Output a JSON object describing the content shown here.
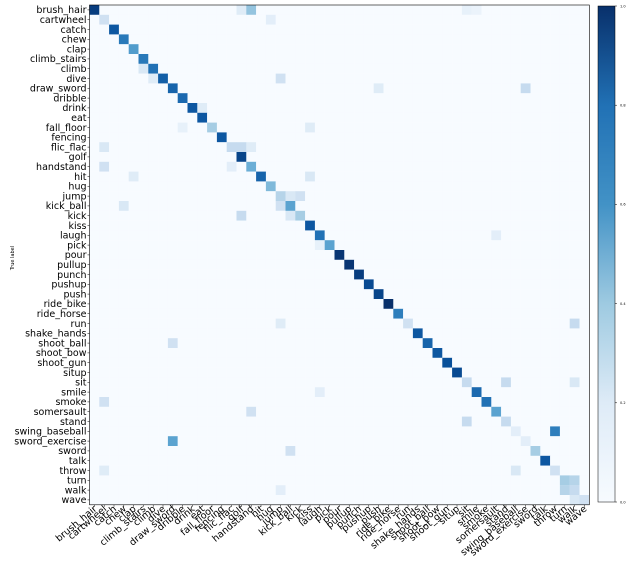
{
  "chart_data": {
    "type": "heatmap",
    "title": "",
    "ylabel": "True label",
    "xlabel": "",
    "labels": [
      "brush_hair",
      "cartwheel",
      "catch",
      "chew",
      "clap",
      "climb_stairs",
      "climb",
      "dive",
      "draw_sword",
      "dribble",
      "drink",
      "eat",
      "fall_floor",
      "fencing",
      "flic_flac",
      "golf",
      "handstand",
      "hit",
      "hug",
      "jump",
      "kick_ball",
      "kick",
      "kiss",
      "laugh",
      "pick",
      "pour",
      "pullup",
      "punch",
      "pushup",
      "push",
      "ride_bike",
      "ride_horse",
      "run",
      "shake_hands",
      "shoot_ball",
      "shoot_bow",
      "shoot_gun",
      "situp",
      "sit",
      "smile",
      "smoke",
      "somersault",
      "stand",
      "swing_baseball",
      "sword_exercise",
      "sword",
      "talk",
      "throw",
      "turn",
      "walk",
      "wave"
    ],
    "colorbar": {
      "min": 0.0,
      "max": 1.0,
      "ticks": [
        "0.0",
        "0.2",
        "0.4",
        "0.6",
        "0.8",
        "1.0"
      ]
    },
    "diagonal": [
      0.95,
      0.2,
      0.85,
      0.72,
      0.58,
      0.72,
      0.75,
      0.82,
      0.8,
      0.78,
      0.85,
      0.85,
      0.35,
      0.85,
      0.25,
      0.92,
      0.5,
      0.8,
      0.45,
      0.3,
      0.55,
      0.35,
      0.85,
      0.75,
      0.55,
      0.98,
      0.98,
      0.95,
      0.9,
      0.92,
      1.0,
      0.7,
      0.2,
      0.85,
      0.8,
      0.85,
      0.88,
      0.9,
      0.25,
      0.78,
      0.75,
      0.55,
      0.25,
      0.1,
      0.1,
      0.35,
      0.85,
      0.2,
      0.35,
      0.25,
      0.2
    ],
    "off_diagonal": [
      {
        "true": "brush_hair",
        "pred": "golf",
        "value": 0.12
      },
      {
        "true": "brush_hair",
        "pred": "handstand",
        "value": 0.4
      },
      {
        "true": "brush_hair",
        "pred": "sit",
        "value": 0.08
      },
      {
        "true": "brush_hair",
        "pred": "smile",
        "value": 0.06
      },
      {
        "true": "cartwheel",
        "pred": "hug",
        "value": 0.1
      },
      {
        "true": "climb",
        "pred": "climb_stairs",
        "value": 0.15
      },
      {
        "true": "dive",
        "pred": "climb",
        "value": 0.12
      },
      {
        "true": "dive",
        "pred": "jump",
        "value": 0.2
      },
      {
        "true": "draw_sword",
        "pred": "sword_exercise",
        "value": 0.25
      },
      {
        "true": "draw_sword",
        "pred": "push",
        "value": 0.12
      },
      {
        "true": "drink",
        "pred": "eat",
        "value": 0.12
      },
      {
        "true": "fall_floor",
        "pred": "dribble",
        "value": 0.08
      },
      {
        "true": "fall_floor",
        "pred": "kiss",
        "value": 0.12
      },
      {
        "true": "flic_flac",
        "pred": "cartwheel",
        "value": 0.15
      },
      {
        "true": "flic_flac",
        "pred": "golf",
        "value": 0.25
      },
      {
        "true": "flic_flac",
        "pred": "handstand",
        "value": 0.12
      },
      {
        "true": "handstand",
        "pred": "cartwheel",
        "value": 0.2
      },
      {
        "true": "handstand",
        "pred": "flic_flac",
        "value": 0.1
      },
      {
        "true": "hit",
        "pred": "kiss",
        "value": 0.15
      },
      {
        "true": "hit",
        "pred": "clap",
        "value": 0.12
      },
      {
        "true": "jump",
        "pred": "kick",
        "value": 0.2
      },
      {
        "true": "jump",
        "pred": "kick_ball",
        "value": 0.15
      },
      {
        "true": "kick_ball",
        "pred": "jump",
        "value": 0.2
      },
      {
        "true": "kick_ball",
        "pred": "chew",
        "value": 0.15
      },
      {
        "true": "kick",
        "pred": "golf",
        "value": 0.25
      },
      {
        "true": "kick",
        "pred": "kick_ball",
        "value": 0.15
      },
      {
        "true": "laugh",
        "pred": "somersault",
        "value": 0.1
      },
      {
        "true": "pick",
        "pred": "laugh",
        "value": 0.08
      },
      {
        "true": "run",
        "pred": "walk",
        "value": 0.25
      },
      {
        "true": "run",
        "pred": "jump",
        "value": 0.12
      },
      {
        "true": "shoot_ball",
        "pred": "draw_sword",
        "value": 0.2
      },
      {
        "true": "sit",
        "pred": "stand",
        "value": 0.25
      },
      {
        "true": "sit",
        "pred": "walk",
        "value": 0.15
      },
      {
        "true": "smile",
        "pred": "laugh",
        "value": 0.1
      },
      {
        "true": "smoke",
        "pred": "cartwheel",
        "value": 0.2
      },
      {
        "true": "somersault",
        "pred": "handstand",
        "value": 0.2
      },
      {
        "true": "stand",
        "pred": "sit",
        "value": 0.25
      },
      {
        "true": "swing_baseball",
        "pred": "throw",
        "value": 0.7
      },
      {
        "true": "sword_exercise",
        "pred": "draw_sword",
        "value": 0.55
      },
      {
        "true": "sword",
        "pred": "kick_ball",
        "value": 0.2
      },
      {
        "true": "throw",
        "pred": "swing_baseball",
        "value": 0.15
      },
      {
        "true": "throw",
        "pred": "cartwheel",
        "value": 0.12
      },
      {
        "true": "turn",
        "pred": "walk",
        "value": 0.3
      },
      {
        "true": "walk",
        "pred": "turn",
        "value": 0.3
      },
      {
        "true": "walk",
        "pred": "jump",
        "value": 0.1
      },
      {
        "true": "wave",
        "pred": "walk",
        "value": 0.15
      }
    ]
  }
}
